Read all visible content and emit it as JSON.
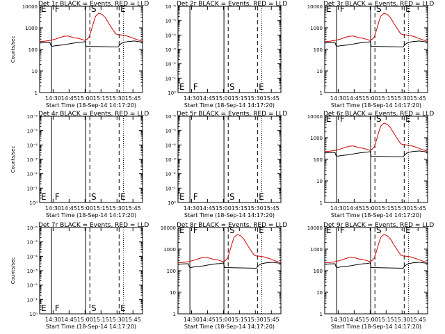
{
  "figure": {
    "x_ticks": [
      "14:30",
      "14:45",
      "15:00",
      "15:15",
      "15:30",
      "15:45"
    ],
    "x_label": "Start Time (18-Sep-14 14:17:20)",
    "y_label": "Counts/sec",
    "colors": {
      "events": "#000000",
      "lld": "#cc0000",
      "axes": "#000000"
    }
  },
  "chart_data": [
    {
      "type": "line",
      "panel": "Det 1r",
      "title": "Det 1r BLACK = Events, RED = LLD",
      "active": true,
      "xlabel": "Start Time (18-Sep-14 14:17:20)",
      "ylabel": "Counts/sec",
      "x_range": [
        "14:17:20",
        "15:54:00"
      ],
      "ylim": [
        1,
        10000
      ],
      "y_ticks": [
        "1",
        "10",
        "100",
        "1000",
        "10000"
      ],
      "yscale": "log",
      "markers": [
        "E",
        "F",
        "S",
        "E"
      ],
      "series": []
    },
    {
      "type": "line",
      "panel": "Det 2r",
      "title": "Det 2r BLACK = Events, RED = LLD",
      "active": false,
      "xlabel": "Start Time (18-Sep-14 14:17:20)",
      "ylabel": "",
      "x_range": [
        "14:17:20",
        "15:54:00"
      ],
      "ylim": [
        1,
        1e-06
      ],
      "y_ticks": [
        "10⁰",
        "10⁻¹",
        "10⁻²",
        "10⁻³",
        "10⁻⁴",
        "10⁻⁵",
        "10⁻⁶"
      ],
      "yscale": "log",
      "markers": [
        "E",
        "F",
        "S",
        "E"
      ],
      "series": []
    },
    {
      "type": "line",
      "panel": "Det 3r",
      "title": "Det 3r BLACK = Events, RED = LLD",
      "active": true,
      "xlabel": "Start Time (18-Sep-14 14:17:20)",
      "ylabel": "",
      "x_range": [
        "14:17:20",
        "15:54:00"
      ],
      "ylim": [
        1,
        10000
      ],
      "y_ticks": [
        "1",
        "10",
        "100",
        "1000",
        "10000"
      ],
      "yscale": "log",
      "markers": [
        "E",
        "F",
        "S",
        "E"
      ],
      "series": []
    },
    {
      "type": "line",
      "panel": "Det 4r",
      "title": "Det 4r BLACK = Events, RED = LLD",
      "active": false,
      "xlabel": "Start Time (18-Sep-14 14:17:20)",
      "ylabel": "Counts/sec",
      "x_range": [
        "14:17:20",
        "15:54:00"
      ],
      "ylim": [
        1,
        1e-06
      ],
      "y_ticks": [
        "10⁰",
        "10⁻¹",
        "10⁻²",
        "10⁻³",
        "10⁻⁴",
        "10⁻⁵",
        "10⁻⁶"
      ],
      "yscale": "log",
      "markers": [
        "E",
        "F",
        "S",
        "E"
      ],
      "series": []
    },
    {
      "type": "line",
      "panel": "Det 5r",
      "title": "Det 5r BLACK = Events, RED = LLD",
      "active": false,
      "xlabel": "Start Time (18-Sep-14 14:17:20)",
      "ylabel": "",
      "x_range": [
        "14:17:20",
        "15:54:00"
      ],
      "ylim": [
        1,
        1e-06
      ],
      "y_ticks": [
        "10⁰",
        "10⁻¹",
        "10⁻²",
        "10⁻³",
        "10⁻⁴",
        "10⁻⁵",
        "10⁻⁶"
      ],
      "yscale": "log",
      "markers": [
        "E",
        "F",
        "S",
        "E"
      ],
      "series": []
    },
    {
      "type": "line",
      "panel": "Det 6r",
      "title": "Det 6r BLACK = Events, RED = LLD",
      "active": true,
      "xlabel": "Start Time (18-Sep-14 14:17:20)",
      "ylabel": "",
      "x_range": [
        "14:17:20",
        "15:54:00"
      ],
      "ylim": [
        1,
        10000
      ],
      "y_ticks": [
        "1",
        "10",
        "100",
        "1000",
        "10000"
      ],
      "yscale": "log",
      "markers": [
        "E",
        "F",
        "S",
        "E"
      ],
      "series": []
    },
    {
      "type": "line",
      "panel": "Det 7r",
      "title": "Det 7r BLACK = Events, RED = LLD",
      "active": false,
      "xlabel": "Start Time (18-Sep-14 14:17:20)",
      "ylabel": "Counts/sec",
      "x_range": [
        "14:17:20",
        "15:54:00"
      ],
      "ylim": [
        1,
        1e-06
      ],
      "y_ticks": [
        "10⁰",
        "10⁻¹",
        "10⁻²",
        "10⁻³",
        "10⁻⁴",
        "10⁻⁵",
        "10⁻⁶"
      ],
      "yscale": "log",
      "markers": [
        "E",
        "F",
        "S",
        "E"
      ],
      "series": []
    },
    {
      "type": "line",
      "panel": "Det 8r",
      "title": "Det 8r BLACK = Events, RED = LLD",
      "active": true,
      "xlabel": "Start Time (18-Sep-14 14:17:20)",
      "ylabel": "",
      "x_range": [
        "14:17:20",
        "15:54:00"
      ],
      "ylim": [
        1,
        10000
      ],
      "y_ticks": [
        "1",
        "10",
        "100",
        "1000",
        "10000"
      ],
      "yscale": "log",
      "markers": [
        "E",
        "F",
        "S",
        "E"
      ],
      "series": []
    },
    {
      "type": "line",
      "panel": "Det 9r",
      "title": "Det 9r BLACK = Events, RED = LLD",
      "active": true,
      "xlabel": "Start Time (18-Sep-14 14:17:20)",
      "ylabel": "",
      "x_range": [
        "14:17:20",
        "15:54:00"
      ],
      "ylim": [
        1,
        10000
      ],
      "y_ticks": [
        "1",
        "10",
        "100",
        "1000",
        "10000"
      ],
      "yscale": "log",
      "markers": [
        "E",
        "F",
        "S",
        "E"
      ],
      "series": []
    }
  ],
  "shared_series": {
    "lld_red": {
      "x": [
        "14:17:20",
        "14:22",
        "14:27",
        "14:32",
        "14:36",
        "14:40",
        "14:44",
        "14:47",
        "14:50",
        "14:53",
        "14:56",
        "14:58",
        "15:00",
        "15:02",
        "15:04",
        "15:06",
        "15:08",
        "15:10",
        "15:13",
        "15:16",
        "15:19",
        "15:22",
        "15:25",
        "15:27",
        "15:29",
        "15:31",
        "15:34",
        "15:38",
        "15:42",
        "15:46",
        "15:50",
        "15:54"
      ],
      "y": [
        230,
        240,
        260,
        300,
        350,
        400,
        420,
        380,
        340,
        330,
        300,
        280,
        260,
        300,
        380,
        800,
        1800,
        3500,
        4800,
        4200,
        3000,
        1700,
        1000,
        700,
        520,
        480,
        470,
        440,
        380,
        320,
        270,
        240
      ]
    },
    "events_black": {
      "x": [
        "14:17:20",
        "14:22",
        "14:27",
        "14:28",
        "14:29",
        "14:33",
        "14:38",
        "14:42",
        "14:46",
        "14:50",
        "14:54",
        "14:57",
        "15:00",
        "15:01",
        "15:31",
        "15:32",
        "15:34",
        "15:36",
        "15:38",
        "15:40",
        "15:42",
        "15:44",
        "15:46",
        "15:50",
        "15:54"
      ],
      "y": [
        200,
        205,
        210,
        150,
        140,
        150,
        160,
        170,
        185,
        200,
        210,
        215,
        230,
        140,
        130,
        150,
        190,
        210,
        220,
        230,
        235,
        240,
        245,
        230,
        220
      ]
    }
  }
}
